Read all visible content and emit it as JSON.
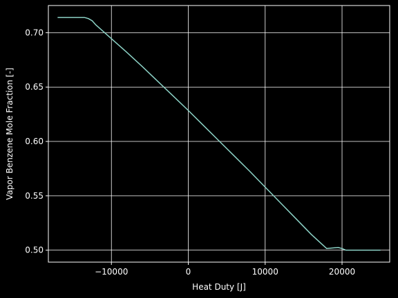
{
  "chart_data": {
    "type": "line",
    "title": "",
    "xlabel": "Heat Duty [J]",
    "ylabel": "Vapor Benzene Mole Fraction [-]",
    "xlim": [
      -18200,
      26200
    ],
    "ylim": [
      0.489,
      0.725
    ],
    "xticks": [
      -10000,
      0,
      10000,
      20000
    ],
    "xtick_labels": [
      "−10000",
      "0",
      "10000",
      "20000"
    ],
    "yticks": [
      0.5,
      0.55,
      0.6,
      0.65,
      0.7
    ],
    "ytick_labels": [
      "0.50",
      "0.55",
      "0.60",
      "0.65",
      "0.70"
    ],
    "grid": true,
    "background": "#000000",
    "foreground": "#ffffff",
    "series": [
      {
        "color": "#8dd3c7",
        "x": [
          -17000,
          -15000,
          -14000,
          -13500,
          -13000,
          -12500,
          -12000,
          -10000,
          -8000,
          -6000,
          -4000,
          -2000,
          0,
          2000,
          4000,
          6000,
          8000,
          10000,
          12000,
          14000,
          16000,
          18000,
          19500,
          20000,
          20500,
          21000,
          23000,
          25000
        ],
        "y": [
          0.714,
          0.714,
          0.714,
          0.714,
          0.713,
          0.711,
          0.707,
          0.6945,
          0.682,
          0.669,
          0.6555,
          0.642,
          0.6285,
          0.6145,
          0.6005,
          0.5865,
          0.5725,
          0.558,
          0.5435,
          0.529,
          0.5145,
          0.5015,
          0.5025,
          0.5015,
          0.5,
          0.5,
          0.5,
          0.5
        ]
      }
    ]
  }
}
